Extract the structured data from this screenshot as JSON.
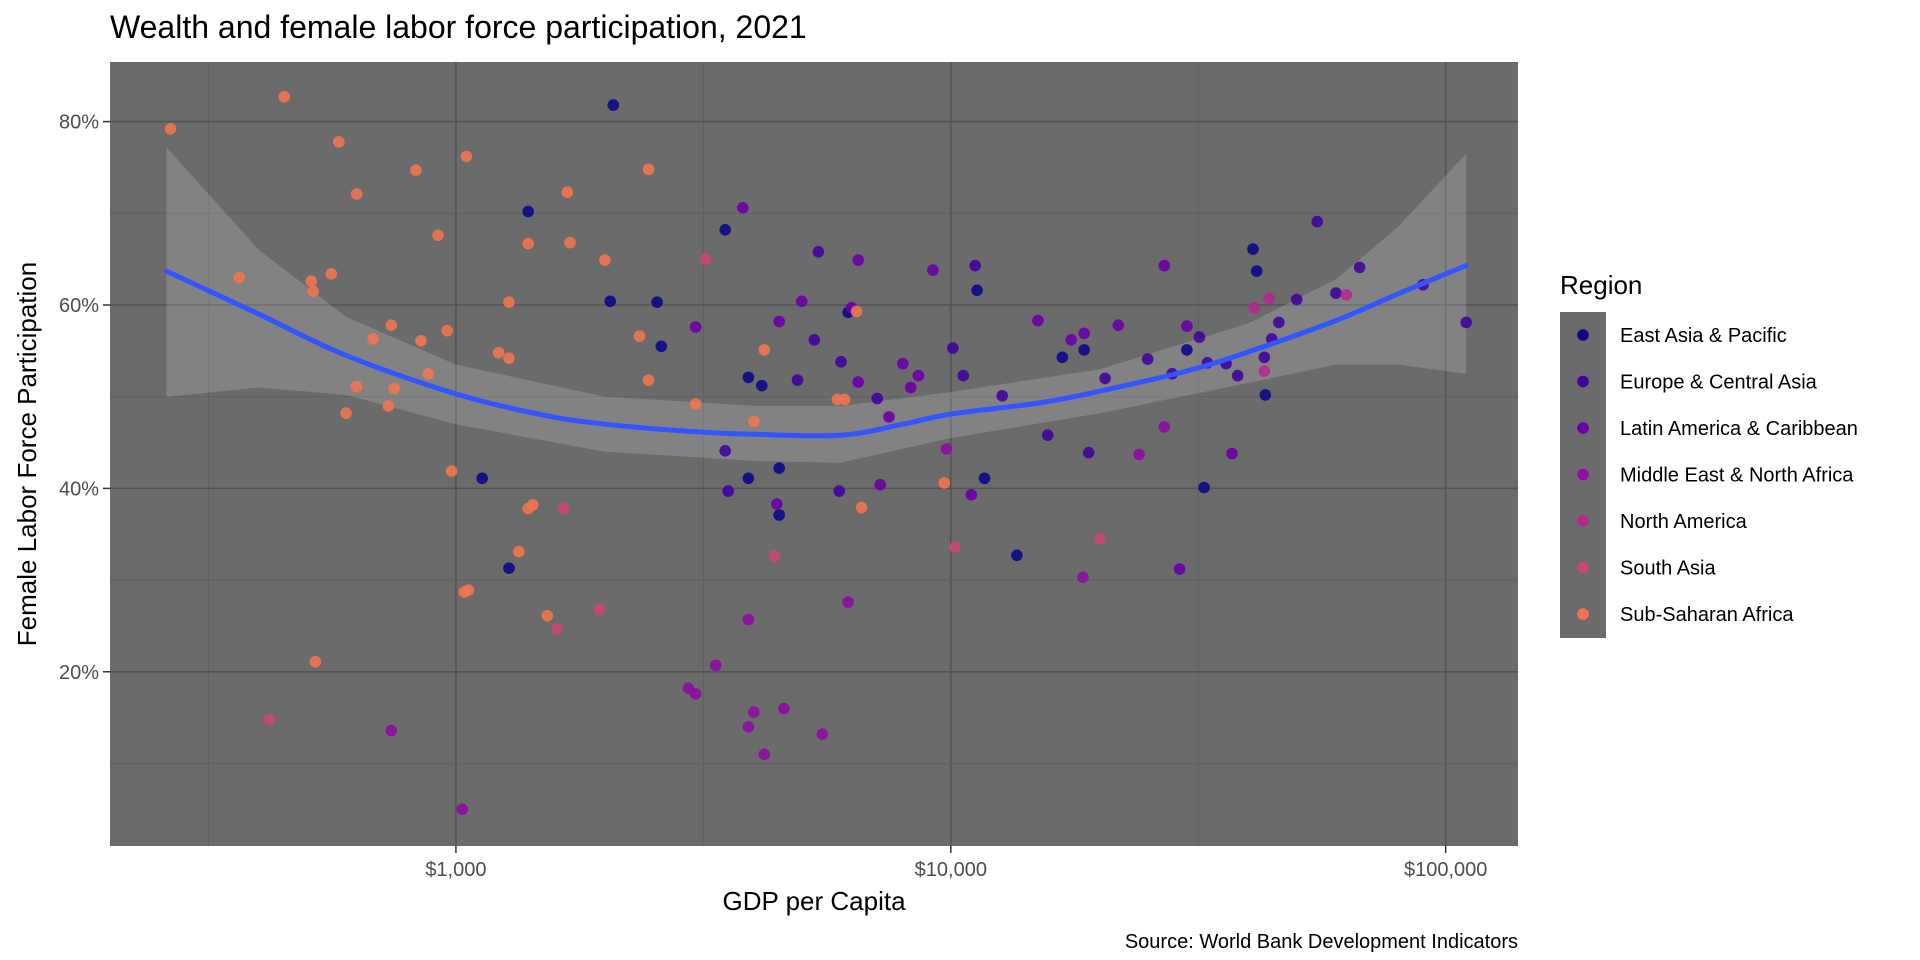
{
  "chart_data": {
    "type": "scatter",
    "title": "Wealth and female labor force participation, 2021",
    "xlabel": "GDP per Capita",
    "ylabel": "Female Labor Force Participation",
    "caption": "Source: World Bank Development Indicators",
    "x_scale": "log10",
    "xlim": [
      200,
      140000
    ],
    "ylim": [
      0.01,
      0.865
    ],
    "x_ticks": [
      {
        "value": 1000,
        "label": "$1,000"
      },
      {
        "value": 10000,
        "label": "$10,000"
      },
      {
        "value": 100000,
        "label": "$100,000"
      }
    ],
    "y_ticks": [
      {
        "value": 0.2,
        "label": "20%"
      },
      {
        "value": 0.4,
        "label": "40%"
      },
      {
        "value": 0.6,
        "label": "60%"
      },
      {
        "value": 0.8,
        "label": "80%"
      }
    ],
    "grid": true,
    "background": "#6b6b6b",
    "legend": {
      "title": "Region",
      "placement": "right",
      "entries": [
        {
          "name": "East Asia & Pacific",
          "color": "#0d0887"
        },
        {
          "name": "Europe & Central Asia",
          "color": "#41049d"
        },
        {
          "name": "Latin America & Caribbean",
          "color": "#6a00a8"
        },
        {
          "name": "Middle East & North Africa",
          "color": "#8f0da4"
        },
        {
          "name": "North America",
          "color": "#b12a90"
        },
        {
          "name": "South Asia",
          "color": "#cc4778"
        },
        {
          "name": "Sub-Saharan Africa",
          "color": "#f0754f"
        }
      ]
    },
    "trend_color": "#3355ff",
    "trend": [
      {
        "x": 260,
        "y": 0.637
      },
      {
        "x": 400,
        "y": 0.59
      },
      {
        "x": 600,
        "y": 0.545
      },
      {
        "x": 1000,
        "y": 0.503
      },
      {
        "x": 1500,
        "y": 0.48
      },
      {
        "x": 2000,
        "y": 0.47
      },
      {
        "x": 3000,
        "y": 0.462
      },
      {
        "x": 4000,
        "y": 0.459
      },
      {
        "x": 6000,
        "y": 0.458
      },
      {
        "x": 8000,
        "y": 0.47
      },
      {
        "x": 10000,
        "y": 0.481
      },
      {
        "x": 15000,
        "y": 0.493
      },
      {
        "x": 20000,
        "y": 0.506
      },
      {
        "x": 30000,
        "y": 0.528
      },
      {
        "x": 40000,
        "y": 0.549
      },
      {
        "x": 60000,
        "y": 0.583
      },
      {
        "x": 80000,
        "y": 0.612
      },
      {
        "x": 110000,
        "y": 0.643
      }
    ],
    "band_upper": [
      {
        "x": 260,
        "y": 0.772
      },
      {
        "x": 400,
        "y": 0.66
      },
      {
        "x": 600,
        "y": 0.587
      },
      {
        "x": 1000,
        "y": 0.535
      },
      {
        "x": 2000,
        "y": 0.5
      },
      {
        "x": 4000,
        "y": 0.49
      },
      {
        "x": 6000,
        "y": 0.49
      },
      {
        "x": 10000,
        "y": 0.505
      },
      {
        "x": 20000,
        "y": 0.53
      },
      {
        "x": 40000,
        "y": 0.58
      },
      {
        "x": 60000,
        "y": 0.628
      },
      {
        "x": 80000,
        "y": 0.685
      },
      {
        "x": 110000,
        "y": 0.765
      }
    ],
    "band_lower": [
      {
        "x": 260,
        "y": 0.5
      },
      {
        "x": 400,
        "y": 0.51
      },
      {
        "x": 600,
        "y": 0.502
      },
      {
        "x": 1000,
        "y": 0.47
      },
      {
        "x": 2000,
        "y": 0.44
      },
      {
        "x": 4000,
        "y": 0.43
      },
      {
        "x": 6000,
        "y": 0.428
      },
      {
        "x": 10000,
        "y": 0.455
      },
      {
        "x": 20000,
        "y": 0.482
      },
      {
        "x": 40000,
        "y": 0.515
      },
      {
        "x": 60000,
        "y": 0.535
      },
      {
        "x": 80000,
        "y": 0.535
      },
      {
        "x": 110000,
        "y": 0.525
      }
    ],
    "series": [
      {
        "name": "East Asia & Pacific",
        "points": [
          [
            2080,
            0.818
          ],
          [
            1400,
            0.702
          ],
          [
            3500,
            0.682
          ],
          [
            2050,
            0.604
          ],
          [
            2550,
            0.603
          ],
          [
            6200,
            0.592
          ],
          [
            2600,
            0.555
          ],
          [
            3900,
            0.521
          ],
          [
            4150,
            0.512
          ],
          [
            4500,
            0.422
          ],
          [
            3900,
            0.411
          ],
          [
            1130,
            0.411
          ],
          [
            4500,
            0.371
          ],
          [
            11300,
            0.616
          ],
          [
            16800,
            0.543
          ],
          [
            18600,
            0.551
          ],
          [
            40800,
            0.661
          ],
          [
            41500,
            0.637
          ],
          [
            43200,
            0.502
          ],
          [
            13600,
            0.327
          ],
          [
            1280,
            0.313
          ],
          [
            30000,
            0.551
          ],
          [
            32500,
            0.401
          ],
          [
            11700,
            0.411
          ]
        ]
      },
      {
        "name": "Europe & Central Asia",
        "points": [
          [
            5400,
            0.658
          ],
          [
            5300,
            0.562
          ],
          [
            4900,
            0.518
          ],
          [
            6000,
            0.538
          ],
          [
            7100,
            0.498
          ],
          [
            3500,
            0.441
          ],
          [
            5950,
            0.397
          ],
          [
            3550,
            0.397
          ],
          [
            10100,
            0.553
          ],
          [
            10600,
            0.523
          ],
          [
            11200,
            0.643
          ],
          [
            15700,
            0.458
          ],
          [
            19000,
            0.439
          ],
          [
            20500,
            0.52
          ],
          [
            25000,
            0.541
          ],
          [
            31800,
            0.565
          ],
          [
            33000,
            0.537
          ],
          [
            36000,
            0.536
          ],
          [
            38000,
            0.523
          ],
          [
            43000,
            0.543
          ],
          [
            44500,
            0.563
          ],
          [
            46000,
            0.581
          ],
          [
            50000,
            0.606
          ],
          [
            55000,
            0.691
          ],
          [
            60000,
            0.613
          ],
          [
            67000,
            0.641
          ],
          [
            90000,
            0.622
          ],
          [
            110000,
            0.581
          ],
          [
            28000,
            0.525
          ],
          [
            12700,
            0.501
          ]
        ]
      },
      {
        "name": "Latin America & Caribbean",
        "points": [
          [
            3800,
            0.706
          ],
          [
            6500,
            0.649
          ],
          [
            5000,
            0.604
          ],
          [
            4500,
            0.582
          ],
          [
            3050,
            0.576
          ],
          [
            6500,
            0.516
          ],
          [
            6300,
            0.597
          ],
          [
            8000,
            0.536
          ],
          [
            8600,
            0.523
          ],
          [
            9200,
            0.638
          ],
          [
            15000,
            0.583
          ],
          [
            17500,
            0.562
          ],
          [
            18600,
            0.569
          ],
          [
            21800,
            0.578
          ],
          [
            27000,
            0.643
          ],
          [
            30000,
            0.577
          ],
          [
            37000,
            0.438
          ],
          [
            7200,
            0.404
          ],
          [
            11000,
            0.393
          ],
          [
            4450,
            0.383
          ],
          [
            29000,
            0.312
          ],
          [
            7500,
            0.478
          ],
          [
            8300,
            0.51
          ]
        ]
      },
      {
        "name": "Middle East & North Africa",
        "points": [
          [
            3900,
            0.257
          ],
          [
            3350,
            0.207
          ],
          [
            2950,
            0.182
          ],
          [
            3050,
            0.176
          ],
          [
            4000,
            0.156
          ],
          [
            4600,
            0.16
          ],
          [
            3900,
            0.14
          ],
          [
            4200,
            0.11
          ],
          [
            5500,
            0.132
          ],
          [
            740,
            0.136
          ],
          [
            1030,
            0.05
          ],
          [
            6200,
            0.276
          ],
          [
            18500,
            0.303
          ],
          [
            24000,
            0.437
          ],
          [
            27000,
            0.467
          ],
          [
            9800,
            0.443
          ]
        ]
      },
      {
        "name": "North America",
        "points": [
          [
            44000,
            0.607
          ],
          [
            63000,
            0.611
          ],
          [
            41000,
            0.597
          ],
          [
            43000,
            0.528
          ]
        ]
      },
      {
        "name": "South Asia",
        "points": [
          [
            420,
            0.148
          ],
          [
            1600,
            0.247
          ],
          [
            1650,
            0.378
          ],
          [
            1950,
            0.268
          ],
          [
            3200,
            0.65
          ],
          [
            4400,
            0.326
          ],
          [
            20000,
            0.345
          ],
          [
            10200,
            0.336
          ]
        ]
      },
      {
        "name": "Sub-Saharan Africa",
        "points": [
          [
            265,
            0.792
          ],
          [
            450,
            0.827
          ],
          [
            580,
            0.778
          ],
          [
            630,
            0.721
          ],
          [
            560,
            0.634
          ],
          [
            510,
            0.626
          ],
          [
            515,
            0.615
          ],
          [
            830,
            0.747
          ],
          [
            1050,
            0.762
          ],
          [
            920,
            0.676
          ],
          [
            1400,
            0.667
          ],
          [
            1680,
            0.723
          ],
          [
            1700,
            0.668
          ],
          [
            2450,
            0.748
          ],
          [
            2000,
            0.649
          ],
          [
            1280,
            0.603
          ],
          [
            740,
            0.578
          ],
          [
            960,
            0.572
          ],
          [
            850,
            0.561
          ],
          [
            2350,
            0.566
          ],
          [
            680,
            0.563
          ],
          [
            1220,
            0.548
          ],
          [
            1280,
            0.542
          ],
          [
            4200,
            0.551
          ],
          [
            880,
            0.525
          ],
          [
            2450,
            0.518
          ],
          [
            630,
            0.511
          ],
          [
            750,
            0.509
          ],
          [
            730,
            0.49
          ],
          [
            600,
            0.482
          ],
          [
            3050,
            0.492
          ],
          [
            4000,
            0.473
          ],
          [
            5900,
            0.497
          ],
          [
            6100,
            0.497
          ],
          [
            980,
            0.419
          ],
          [
            1400,
            0.378
          ],
          [
            1430,
            0.382
          ],
          [
            6600,
            0.379
          ],
          [
            9700,
            0.406
          ],
          [
            1340,
            0.331
          ],
          [
            1060,
            0.289
          ],
          [
            1040,
            0.287
          ],
          [
            1530,
            0.261
          ],
          [
            520,
            0.211
          ],
          [
            6450,
            0.593
          ],
          [
            365,
            0.63
          ]
        ]
      }
    ]
  }
}
